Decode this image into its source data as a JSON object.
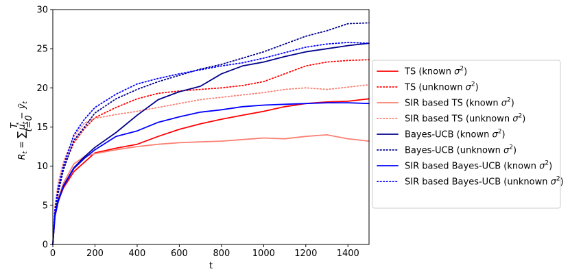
{
  "chart_data": {
    "type": "line",
    "xlabel": "t",
    "ylabel_parts": [
      "R",
      "t",
      " = ",
      "∑",
      "T",
      "t=0",
      "μ",
      "t",
      "*",
      " − ",
      "ȳ",
      "t"
    ],
    "xlim": [
      0,
      1500
    ],
    "ylim": [
      0,
      30
    ],
    "xticks": [
      0,
      200,
      400,
      600,
      800,
      1000,
      1200,
      1400
    ],
    "yticks": [
      0,
      5,
      10,
      15,
      20,
      25,
      30
    ],
    "grid": false,
    "legend_position": "outside-right",
    "x": [
      0,
      10,
      25,
      50,
      100,
      150,
      200,
      300,
      400,
      500,
      600,
      700,
      800,
      900,
      1000,
      1100,
      1200,
      1300,
      1400,
      1500
    ],
    "series": [
      {
        "name": "TS (known σ²)",
        "name_base": "TS (known ",
        "color": "#ff0000",
        "dash": "solid",
        "values": [
          0,
          3.5,
          5.5,
          7.2,
          9.3,
          10.5,
          11.7,
          12.3,
          12.8,
          13.8,
          14.7,
          15.4,
          16.0,
          16.5,
          17.0,
          17.6,
          18.0,
          18.2,
          18.3,
          18.6
        ]
      },
      {
        "name": "TS (unknown σ²)",
        "name_base": "TS (unknown ",
        "color": "#ff0000",
        "dash": "dotted",
        "values": [
          0,
          4.5,
          7.0,
          9.8,
          13.0,
          14.8,
          16.2,
          17.5,
          18.6,
          19.3,
          19.6,
          19.8,
          20.0,
          20.3,
          20.8,
          21.8,
          22.8,
          23.3,
          23.5,
          23.6
        ]
      },
      {
        "name": "SIR based TS (known σ²)",
        "name_base": "SIR based TS (known ",
        "color": "#fa8072",
        "dash": "solid",
        "values": [
          0,
          4.0,
          5.8,
          7.8,
          10.3,
          11.2,
          11.6,
          12.1,
          12.5,
          12.8,
          13.0,
          13.1,
          13.2,
          13.4,
          13.6,
          13.5,
          13.8,
          14.0,
          13.5,
          13.2
        ]
      },
      {
        "name": "SIR based TS (unknown σ²)",
        "name_base": "SIR based TS (unknown ",
        "color": "#fa8072",
        "dash": "dotted",
        "values": [
          0,
          4.8,
          7.8,
          10.5,
          13.8,
          15.5,
          16.1,
          16.6,
          17.0,
          17.5,
          18.0,
          18.5,
          18.8,
          19.1,
          19.4,
          19.8,
          20.0,
          19.8,
          20.1,
          20.4
        ]
      },
      {
        "name": "Bayes-UCB (known σ²)",
        "name_base": "Bayes-UCB (known ",
        "color": "#00008b",
        "dash": "solid",
        "values": [
          0,
          3.8,
          5.6,
          7.5,
          9.8,
          11.2,
          12.4,
          14.3,
          16.5,
          18.5,
          19.5,
          20.2,
          21.8,
          22.8,
          23.3,
          24.0,
          24.6,
          25.0,
          25.4,
          25.7
        ]
      },
      {
        "name": "Bayes-UCB (unknown σ²)",
        "name_base": "Bayes-UCB (unknown ",
        "color": "#00008b",
        "dash": "dotted",
        "values": [
          0,
          4.2,
          6.5,
          9.5,
          13.3,
          15.0,
          16.8,
          18.6,
          19.8,
          20.8,
          21.6,
          22.4,
          23.0,
          23.8,
          24.6,
          25.6,
          26.6,
          27.3,
          28.2,
          28.3
        ]
      },
      {
        "name": "SIR based Bayes-UCB (known σ²)",
        "name_base": "SIR based Bayes-UCB (known ",
        "color": "#0000ff",
        "dash": "solid",
        "values": [
          0,
          3.6,
          5.4,
          7.4,
          9.7,
          11.0,
          12.1,
          13.8,
          14.5,
          15.6,
          16.3,
          16.9,
          17.2,
          17.6,
          17.8,
          17.9,
          18.0,
          18.1,
          18.1,
          18.0
        ]
      },
      {
        "name": "SIR based Bayes-UCB (unknown σ²)",
        "name_base": "SIR based Bayes-UCB (unknown ",
        "color": "#0000ff",
        "dash": "dotted",
        "values": [
          0,
          4.5,
          7.2,
          10.0,
          14.0,
          16.0,
          17.5,
          19.2,
          20.5,
          21.2,
          21.8,
          22.3,
          22.8,
          23.2,
          23.8,
          24.5,
          25.2,
          25.6,
          25.8,
          25.7
        ]
      }
    ]
  }
}
